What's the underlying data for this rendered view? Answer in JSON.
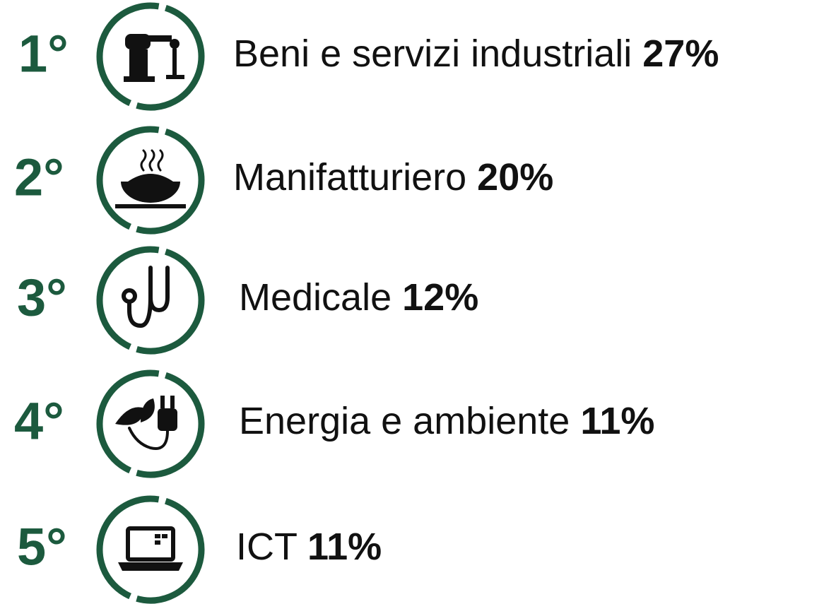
{
  "items": [
    {
      "rank": "1°",
      "label": "Beni e servizi industriali",
      "share": "27%"
    },
    {
      "rank": "2°",
      "label": "Manifatturiero",
      "share": "20%"
    },
    {
      "rank": "3°",
      "label": "Medicale",
      "share": "12%"
    },
    {
      "rank": "4°",
      "label": "Energia e ambiente",
      "share": "11%"
    },
    {
      "rank": "5°",
      "label": "ICT",
      "share": "11%"
    }
  ]
}
